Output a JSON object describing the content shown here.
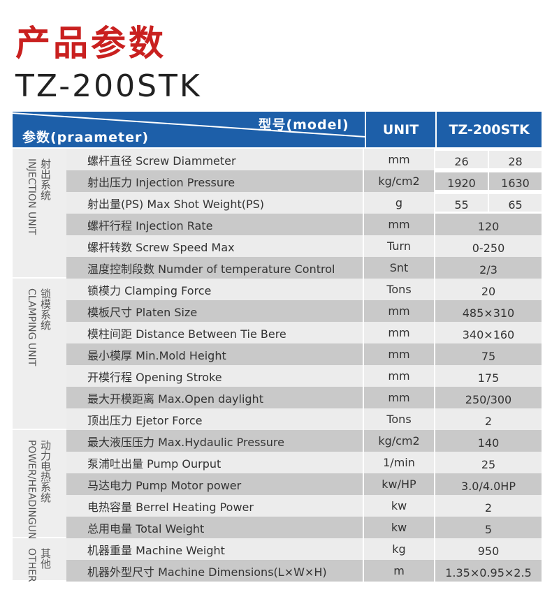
{
  "title": "产品参数",
  "model": "TZ-200STK",
  "header": {
    "param": "参数(praameter)",
    "model": "型号(model)",
    "unit": "UNIT",
    "value": "TZ-200STK"
  },
  "sections": [
    {
      "zh": "射出系统",
      "en": "INJECTION UNIT"
    },
    {
      "zh": "锁模系统",
      "en": "CLAMPING UNIT"
    },
    {
      "zh": "动力电热系统",
      "en": "POWER/HEADINGUNIT"
    },
    {
      "zh": "其他",
      "en": "OTHER"
    }
  ],
  "rows": [
    {
      "param": "螺杆直径 Screw Diammeter",
      "unit": "mm",
      "values": [
        "26",
        "28"
      ]
    },
    {
      "param": "射出压力 Injection Pressure",
      "unit": "kg/cm2",
      "values": [
        "1920",
        "1630"
      ]
    },
    {
      "param": "射出量(PS) Max Shot Weight(PS)",
      "unit": "g",
      "values": [
        "55",
        "65"
      ]
    },
    {
      "param": "螺杆行程 Injection Rate",
      "unit": "mm",
      "values": [
        "120"
      ]
    },
    {
      "param": "螺杆转数 Screw Speed Max",
      "unit": "Turn",
      "values": [
        "0-250"
      ]
    },
    {
      "param": "温度控制段数 Numder of temperature Control",
      "unit": "Snt",
      "values": [
        "2/3"
      ]
    },
    {
      "param": "锁模力 Clamping Force",
      "unit": "Tons",
      "values": [
        "20"
      ]
    },
    {
      "param": "模板尺寸 Platen Size",
      "unit": "mm",
      "values": [
        "485×310"
      ]
    },
    {
      "param": "模柱间距 Distance Between Tie Bere",
      "unit": "mm",
      "values": [
        "340×160"
      ]
    },
    {
      "param": "最小模厚 Min.Mold Height",
      "unit": "mm",
      "values": [
        "75"
      ]
    },
    {
      "param": "开模行程 Opening Stroke",
      "unit": "mm",
      "values": [
        "175"
      ]
    },
    {
      "param": "最大开模距离 Max.Open daylight",
      "unit": "mm",
      "values": [
        "250/300"
      ]
    },
    {
      "param": "顶出压力 Ejetor Force",
      "unit": "Tons",
      "values": [
        "2"
      ]
    },
    {
      "param": "最大液压压力 Max.Hydaulic Pressure",
      "unit": "kg/cm2",
      "values": [
        "140"
      ]
    },
    {
      "param": "泵浦吐出量 Pump Ourput",
      "unit": "1/min",
      "values": [
        "25"
      ]
    },
    {
      "param": "马达电力 Pump Motor power",
      "unit": "kw/HP",
      "values": [
        "3.0/4.0HP"
      ]
    },
    {
      "param": "电热容量 Berrel Heating Power",
      "unit": "kw",
      "values": [
        "2"
      ]
    },
    {
      "param": "总用电量 Total Weight",
      "unit": "kw",
      "values": [
        "5"
      ]
    },
    {
      "param": "机器重量 Machine Weight",
      "unit": "kg",
      "values": [
        "950"
      ]
    },
    {
      "param": "机器外型尺寸 Machine Dimensions(L×W×H)",
      "unit": "m",
      "values": [
        "1.35×0.95×2.5"
      ]
    }
  ]
}
